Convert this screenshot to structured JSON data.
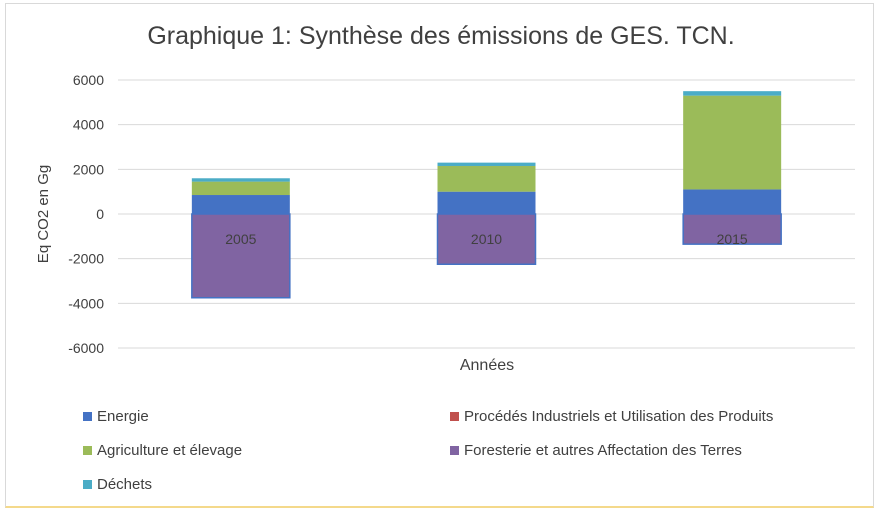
{
  "chart_data": {
    "type": "bar",
    "stacked": true,
    "title": "Graphique 1: Synthèse des émissions de GES. TCN.",
    "xlabel": "Années",
    "ylabel": "Eq CO2 en Gg",
    "ylim": [
      -6000,
      6000
    ],
    "yticks": [
      6000,
      4000,
      2000,
      0,
      -2000,
      -4000,
      -6000
    ],
    "grid": true,
    "legend_position": "bottom",
    "categories": [
      "2005",
      "2010",
      "2015"
    ],
    "series": [
      {
        "name": "Energie",
        "color": "#4472c4",
        "values": [
          850,
          1000,
          1100
        ]
      },
      {
        "name": "Procédés Industriels et Utilisation des Produits",
        "color": "#c0504d",
        "values": [
          0,
          0,
          0
        ]
      },
      {
        "name": "Agriculture et élevage",
        "color": "#9bbb59",
        "values": [
          600,
          1150,
          4200
        ]
      },
      {
        "name": "Foresterie et autres Affectation des Terres",
        "color": "#8064a2",
        "values": [
          -3750,
          -2250,
          -1350
        ]
      },
      {
        "name": "Déchets",
        "color": "#4bacc6",
        "values": [
          150,
          150,
          200
        ]
      }
    ]
  }
}
